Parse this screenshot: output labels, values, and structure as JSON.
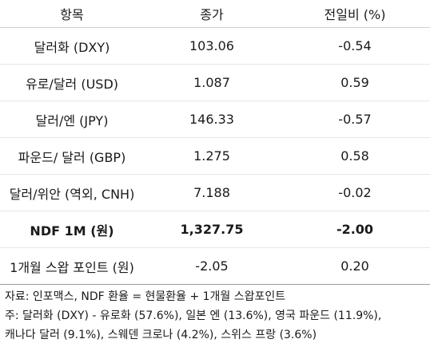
{
  "table": {
    "headers": [
      "항목",
      "종가",
      "전일비 (%)"
    ],
    "rows": [
      {
        "item": "달러화 (DXY)",
        "close": "103.06",
        "change": "-0.54",
        "bold": false
      },
      {
        "item": "유로/달러 (USD)",
        "close": "1.087",
        "change": "0.59",
        "bold": false
      },
      {
        "item": "달러/엔 (JPY)",
        "close": "146.33",
        "change": "-0.57",
        "bold": false
      },
      {
        "item": "파운드/ 달러 (GBP)",
        "close": "1.275",
        "change": "0.58",
        "bold": false
      },
      {
        "item": "달러/위안 (역외, CNH)",
        "close": "7.188",
        "change": "-0.02",
        "bold": false
      },
      {
        "item": "NDF 1M (원)",
        "close": "1,327.75",
        "change": "-2.00",
        "bold": true
      },
      {
        "item": "1개월 스왑 포인트 (원)",
        "close": "-2.05",
        "change": "0.20",
        "bold": false
      }
    ]
  },
  "notes": {
    "source": "자료: 인포맥스, NDF 환율 = 현물환율 + 1개월 스왑포인트",
    "note_line1": "주: 달러화 (DXY) - 유로화 (57.6%), 일본 엔 (13.6%), 영국 파운드 (11.9%),",
    "note_line2": "캐나다 달러 (9.1%), 스웨덴 크로나 (4.2%), 스위스 프랑 (3.6%)"
  }
}
